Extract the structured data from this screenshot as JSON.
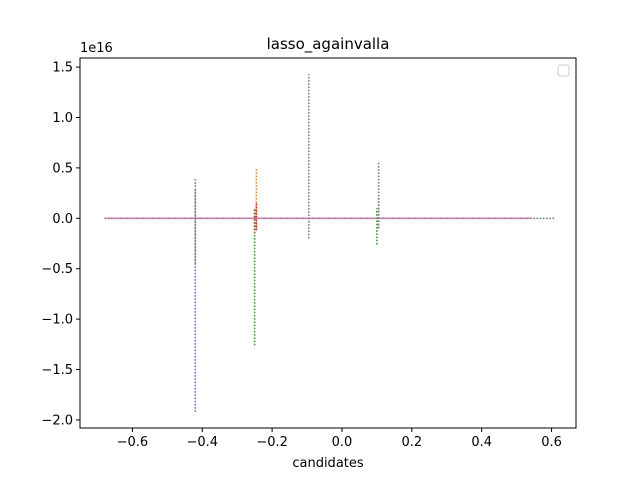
{
  "chart_data": {
    "type": "line",
    "title": "lasso_againvalla",
    "xlabel": "candidates",
    "ylabel": "",
    "y_offset_label": "1e16",
    "xlim": [
      -0.75,
      0.67
    ],
    "ylim": [
      -2.08,
      1.59
    ],
    "grid": false,
    "legend": {
      "placement": "top-right",
      "entries": []
    },
    "x_ticks": [
      -0.6,
      -0.4,
      -0.2,
      0.0,
      0.2,
      0.4,
      0.6
    ],
    "x_tick_labels": [
      "−0.6",
      "−0.4",
      "−0.2",
      "0.0",
      "0.2",
      "0.4",
      "0.6"
    ],
    "y_ticks": [
      -2.0,
      -1.5,
      -1.0,
      -0.5,
      0.0,
      0.5,
      1.0,
      1.5
    ],
    "y_tick_labels": [
      "−2.0",
      "−1.5",
      "−1.0",
      "−0.5",
      "0.0",
      "0.5",
      "1.0",
      "1.5"
    ],
    "baseline": {
      "x": [
        -0.68,
        0.61
      ],
      "y": [
        0.0,
        0.0
      ],
      "color": "#7f7f7f"
    },
    "series": [
      {
        "color": "#1f77b4",
        "x": [
          0.105,
          0.105
        ],
        "y": [
          -0.1,
          0.2
        ]
      },
      {
        "color": "#ff7f0e",
        "x": [
          -0.245,
          -0.245
        ],
        "y": [
          -0.1,
          0.5
        ]
      },
      {
        "color": "#2ca02c",
        "x": [
          -0.25,
          -0.25
        ],
        "y": [
          -1.26,
          0.1
        ]
      },
      {
        "color": "#2ca02c",
        "x": [
          0.1,
          0.1
        ],
        "y": [
          -0.26,
          0.1
        ]
      },
      {
        "color": "#d62728",
        "x": [
          -0.245,
          -0.245
        ],
        "y": [
          -0.12,
          0.15
        ]
      },
      {
        "color": "#9467bd",
        "x": [
          -0.42,
          -0.42
        ],
        "y": [
          -1.92,
          0.3
        ]
      },
      {
        "color": "#8c564b",
        "x": [
          -0.25,
          -0.25
        ],
        "y": [
          -0.15,
          0.1
        ]
      },
      {
        "color": "#e377c2",
        "x": [
          -0.675,
          0.545
        ],
        "y": [
          0.0,
          0.0
        ]
      },
      {
        "color": "#7f7f7f",
        "x": [
          -0.095,
          -0.095
        ],
        "y": [
          -0.2,
          1.43
        ]
      },
      {
        "color": "#7f7f7f",
        "x": [
          0.105,
          0.105
        ],
        "y": [
          -0.1,
          0.56
        ]
      },
      {
        "color": "#7f7f7f",
        "x": [
          -0.42,
          -0.42
        ],
        "y": [
          -0.45,
          0.39
        ]
      }
    ]
  }
}
